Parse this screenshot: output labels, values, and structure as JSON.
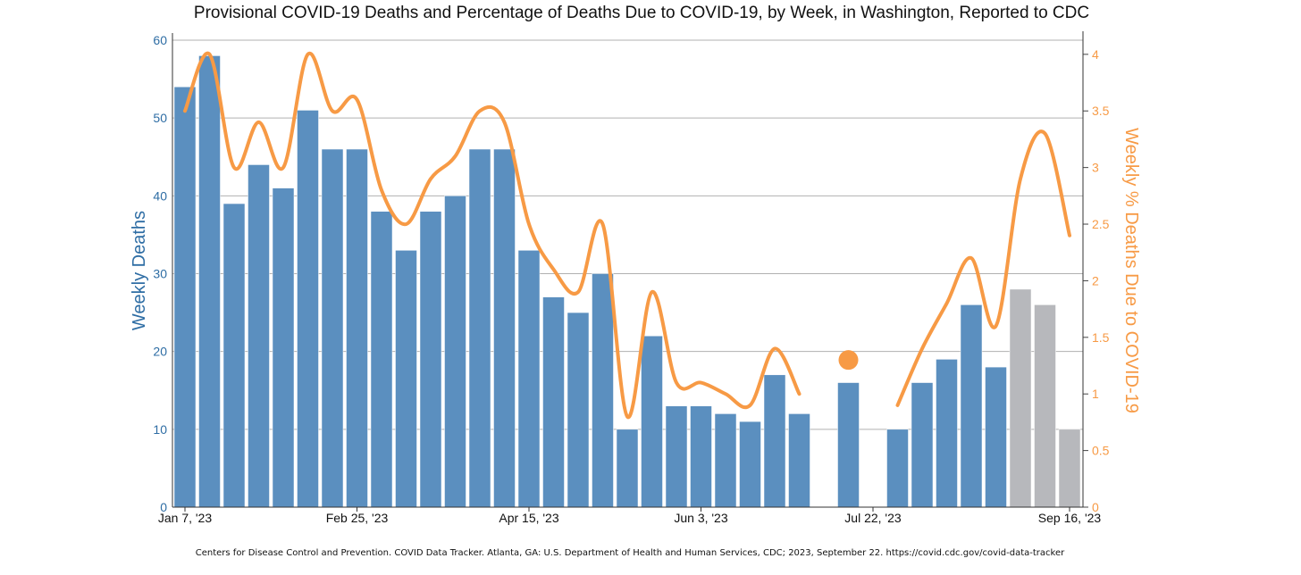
{
  "chart_data": {
    "type": "bar+line",
    "title": "Provisional COVID-19 Deaths and Percentage of Deaths Due to COVID-19, by Week, in Washington, Reported to CDC",
    "ylabel": "Weekly Deaths",
    "y2label": "Weekly % Deaths Due to COVID-19",
    "ylim": [
      0,
      60
    ],
    "y2lim": [
      0,
      4.125
    ],
    "yticks": [
      "0",
      "10",
      "20",
      "30",
      "40",
      "50",
      "60"
    ],
    "y2ticks": [
      "0",
      "0.5",
      "1",
      "1.5",
      "2",
      "2.5",
      "3",
      "3.5",
      "4"
    ],
    "xtick_labels": [
      {
        "index": 0,
        "label": "Jan 7, '23"
      },
      {
        "index": 7,
        "label": "Feb 25, '23"
      },
      {
        "index": 14,
        "label": "Apr 15, '23"
      },
      {
        "index": 21,
        "label": "Jun 3, '23"
      },
      {
        "index": 28,
        "label": "Jul 22, '23"
      },
      {
        "index": 36,
        "label": "Sep 16, '23"
      }
    ],
    "grid": true,
    "colors": {
      "bars": "#5b8fbf",
      "incomplete": "#b7b8bc",
      "line": "#f79a45",
      "left_axis": "#2e6da4",
      "right_axis": "#f79a45"
    },
    "weekly_deaths": [
      54,
      58,
      39,
      44,
      41,
      51,
      46,
      46,
      38,
      33,
      38,
      40,
      46,
      46,
      33,
      27,
      25,
      30,
      10,
      22,
      13,
      13,
      12,
      11,
      17,
      12,
      null,
      16,
      null,
      10,
      16,
      19,
      26,
      18,
      28,
      26,
      10
    ],
    "incomplete_from_index": 34,
    "weekly_pct": [
      3.5,
      4.0,
      3.0,
      3.4,
      3.0,
      4.0,
      3.5,
      3.6,
      2.8,
      2.5,
      2.9,
      3.1,
      3.5,
      3.4,
      2.5,
      2.1,
      1.9,
      2.5,
      0.8,
      1.9,
      1.1,
      1.1,
      1.0,
      0.9,
      1.4,
      1.0,
      null,
      1.3,
      null,
      0.9,
      1.4,
      1.8,
      2.2,
      1.6,
      2.9,
      3.3,
      2.4
    ]
  },
  "footer": "Centers for Disease Control and Prevention. COVID Data Tracker. Atlanta, GA: U.S. Department of Health and Human Services, CDC; 2023, September 22. https://covid.cdc.gov/covid-data-tracker"
}
